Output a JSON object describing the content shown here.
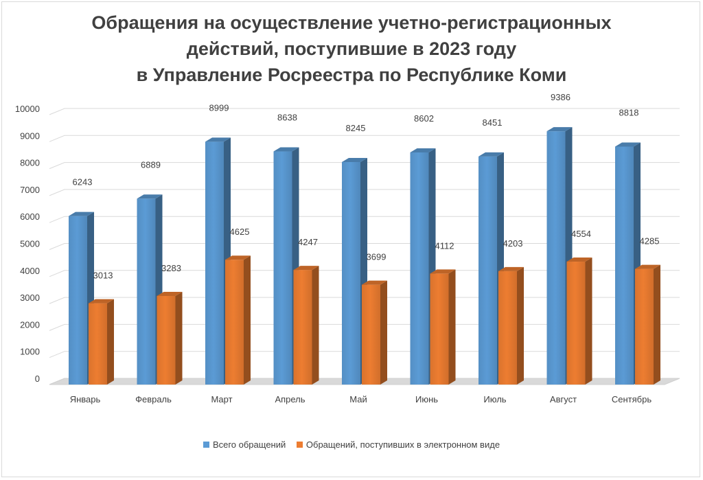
{
  "chart_data": {
    "type": "bar",
    "title_lines": [
      "Обращения на осуществление учетно-регистрационных",
      "действий, поступившие в 2023 году",
      "в Управление Росреестра по Республике Коми"
    ],
    "categories": [
      "Январь",
      "Февраль",
      "Март",
      "Апрель",
      "Май",
      "Июнь",
      "Июль",
      "Август",
      "Сентябрь"
    ],
    "series": [
      {
        "name": "Всего обращений",
        "values": [
          6243,
          6889,
          8999,
          8638,
          8245,
          8602,
          8451,
          9386,
          8818
        ],
        "color": "#5b9bd5"
      },
      {
        "name": "Обращений, поступивших в электронном виде",
        "values": [
          3013,
          3283,
          4625,
          4247,
          3699,
          4112,
          4203,
          4554,
          4285
        ],
        "color": "#ed7d31"
      }
    ],
    "y_ticks": [
      "0",
      "1000",
      "2000",
      "3000",
      "4000",
      "5000",
      "6000",
      "7000",
      "8000",
      "9000",
      "10000"
    ],
    "ylim": [
      0,
      10000
    ],
    "grid": true,
    "legend_position": "bottom",
    "style": "3d-clustered-column"
  }
}
